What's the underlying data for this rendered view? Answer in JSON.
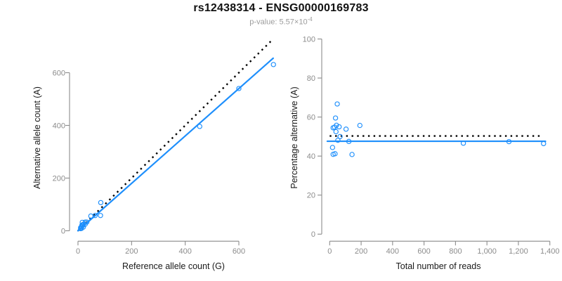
{
  "header": {
    "title": "rs12438314 - ENSG00000169783",
    "pvalue_label": "p-value: ",
    "pvalue_base": "5.57×10",
    "pvalue_exponent": "-4"
  },
  "colors": {
    "accent_blue": "#1E8FFC",
    "axis_gray": "#8c8c8c",
    "tick_label_gray": "#8c8c8c",
    "axis_title_black": "#1a1a1a",
    "subtitle_gray": "#9c9c9c",
    "reference_black": "#000000"
  },
  "chart_data": [
    {
      "type": "scatter",
      "title": "",
      "xlabel": "Reference allele count (G)",
      "ylabel": "Alternative allele count (A)",
      "xlim": [
        0,
        740
      ],
      "ylim": [
        0,
        730
      ],
      "grid": false,
      "xtick_values": [
        0,
        200,
        400,
        600
      ],
      "xtick_labels": [
        "0",
        "200",
        "400",
        "600"
      ],
      "ytick_values": [
        0,
        200,
        400,
        600
      ],
      "ytick_labels": [
        "0",
        "200",
        "400",
        "600"
      ],
      "points": [
        [
          10,
          8
        ],
        [
          10,
          12
        ],
        [
          13,
          9
        ],
        [
          14,
          17
        ],
        [
          15,
          22
        ],
        [
          16,
          32
        ],
        [
          19,
          21
        ],
        [
          19,
          24
        ],
        [
          20,
          14
        ],
        [
          27,
          25
        ],
        [
          27,
          33
        ],
        [
          33,
          33
        ],
        [
          48,
          56
        ],
        [
          64,
          58
        ],
        [
          84,
          58
        ],
        [
          85,
          107
        ],
        [
          454,
          396
        ],
        [
          600,
          540
        ],
        [
          729,
          631
        ]
      ],
      "lines": [
        {
          "name": "identity-line",
          "style": "dotted",
          "color": "reference_black",
          "x1": 0,
          "y1": 0,
          "x2": 726,
          "y2": 726
        },
        {
          "name": "fit-line",
          "style": "solid",
          "color": "accent_blue",
          "x1": 0,
          "y1": 0,
          "x2": 728,
          "y2": 655
        }
      ]
    },
    {
      "type": "scatter",
      "title": "",
      "xlabel": "Total number of reads",
      "ylabel": "Percentage alternative (A)",
      "xlim": [
        0,
        1420
      ],
      "ylim": [
        0,
        100
      ],
      "grid": false,
      "xtick_values": [
        0,
        200,
        400,
        600,
        800,
        1000,
        1200,
        1400
      ],
      "xtick_labels": [
        "0",
        "200",
        "400",
        "600",
        "800",
        "1,000",
        "1,200",
        "1,400"
      ],
      "ytick_values": [
        0,
        20,
        40,
        60,
        80,
        100
      ],
      "ytick_labels": [
        "0",
        "20",
        "40",
        "60",
        "80",
        "100"
      ],
      "points": [
        [
          18,
          44.4
        ],
        [
          22,
          54.5
        ],
        [
          22,
          40.9
        ],
        [
          31,
          54.8
        ],
        [
          37,
          59.5
        ],
        [
          48,
          66.7
        ],
        [
          40,
          52.5
        ],
        [
          43,
          55.8
        ],
        [
          34,
          41.2
        ],
        [
          52,
          48.1
        ],
        [
          60,
          55.0
        ],
        [
          66,
          50.0
        ],
        [
          104,
          53.8
        ],
        [
          122,
          47.5
        ],
        [
          142,
          40.8
        ],
        [
          192,
          55.7
        ],
        [
          850,
          46.6
        ],
        [
          1140,
          47.4
        ],
        [
          1360,
          46.4
        ]
      ],
      "lines": [
        {
          "name": "reference-line",
          "style": "dotted",
          "color": "reference_black",
          "x1": 0,
          "y1": 50.3,
          "x2": 1345,
          "y2": 50.3
        },
        {
          "name": "fit-line",
          "style": "solid",
          "color": "accent_blue",
          "x1": -15,
          "y1": 47.6,
          "x2": 1372,
          "y2": 47.6
        }
      ]
    }
  ]
}
